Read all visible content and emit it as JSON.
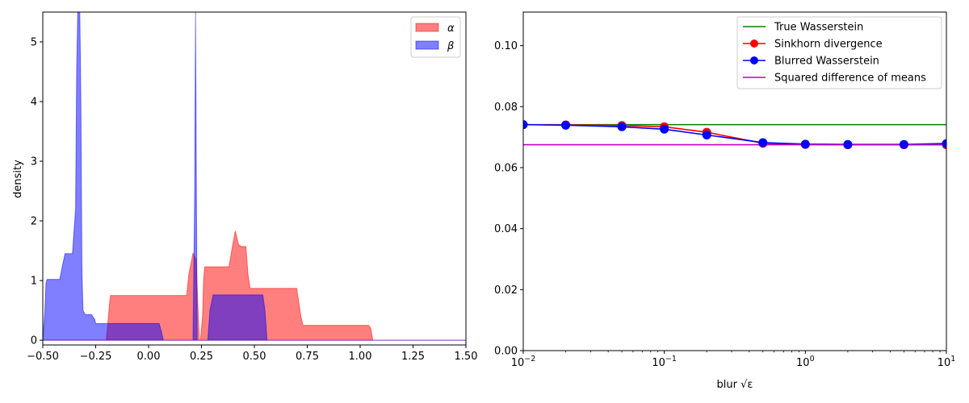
{
  "chart_data": [
    {
      "type": "area",
      "xlabel": "",
      "ylabel": "density",
      "xlim": [
        -0.5,
        1.5
      ],
      "ylim": [
        -0.08,
        5.5
      ],
      "xticks": [
        -0.5,
        -0.25,
        0.0,
        0.25,
        0.5,
        0.75,
        1.0,
        1.25,
        1.5
      ],
      "xtick_labels": [
        "−0.50",
        "−0.25",
        "0.00",
        "0.25",
        "0.50",
        "0.75",
        "1.00",
        "1.25",
        "1.50"
      ],
      "yticks": [
        0,
        1,
        2,
        3,
        4,
        5
      ],
      "ytick_labels": [
        "0",
        "1",
        "2",
        "3",
        "4",
        "5"
      ],
      "grid": false,
      "legend": "top-right",
      "series": [
        {
          "name": "α",
          "color": "#ff0000",
          "opacity": 0.5,
          "x": [
            -0.5,
            -0.2,
            -0.185,
            -0.18,
            0.18,
            0.19,
            0.21,
            0.225,
            0.235,
            0.24,
            0.245,
            0.255,
            0.26,
            0.265,
            0.28,
            0.38,
            0.395,
            0.41,
            0.425,
            0.44,
            0.46,
            0.47,
            0.48,
            0.5,
            0.7,
            0.72,
            0.73,
            1.04,
            1.05,
            1.06,
            1.5
          ],
          "y": [
            0,
            0,
            0.6,
            0.75,
            0.75,
            1.1,
            1.46,
            1.35,
            0.4,
            0,
            0,
            0.4,
            1.0,
            1.23,
            1.23,
            1.23,
            1.55,
            1.83,
            1.6,
            1.57,
            1.57,
            1.1,
            0.87,
            0.87,
            0.87,
            0.4,
            0.25,
            0.25,
            0.2,
            0,
            0
          ]
        },
        {
          "name": "β",
          "color": "#0000ff",
          "opacity": 0.5,
          "x": [
            -0.5,
            -0.49,
            -0.485,
            -0.48,
            -0.42,
            -0.41,
            -0.395,
            -0.36,
            -0.345,
            -0.34,
            -0.335,
            -0.33,
            -0.325,
            -0.32,
            -0.315,
            -0.31,
            -0.3,
            -0.27,
            -0.255,
            -0.25,
            0.05,
            0.06,
            0.07,
            0.21,
            0.218,
            0.222,
            0.226,
            0.23,
            0.24,
            0.28,
            0.29,
            0.305,
            0.54,
            0.55,
            0.56,
            1.5
          ],
          "y": [
            0,
            0.5,
            0.95,
            1.02,
            1.02,
            1.2,
            1.45,
            1.45,
            2.2,
            4.5,
            5.5,
            5.5,
            5.5,
            4.0,
            1.2,
            0.5,
            0.43,
            0.43,
            0.35,
            0.28,
            0.28,
            0.15,
            0,
            0,
            2.5,
            5.5,
            2.5,
            0,
            0,
            0,
            0.5,
            0.76,
            0.76,
            0.5,
            0,
            0
          ]
        }
      ]
    },
    {
      "type": "line",
      "xscale": "log",
      "xlabel": "blur √ε",
      "ylabel": "",
      "xlim": [
        0.01,
        10
      ],
      "ylim": [
        0,
        0.111
      ],
      "xticks": [
        0.01,
        0.1,
        1,
        10
      ],
      "xtick_labels": [
        {
          "base": "10",
          "exp": "−2"
        },
        {
          "base": "10",
          "exp": "−1"
        },
        {
          "base": "10",
          "exp": "0"
        },
        {
          "base": "10",
          "exp": "1"
        }
      ],
      "yticks": [
        0,
        0.02,
        0.04,
        0.06,
        0.08,
        0.1
      ],
      "ytick_labels": [
        "0.00",
        "0.02",
        "0.04",
        "0.06",
        "0.08",
        "0.10"
      ],
      "grid": false,
      "legend": "top-right",
      "series": [
        {
          "name": "True Wasserstein",
          "color": "#008000",
          "marker": false,
          "x": [
            0.01,
            10
          ],
          "y": [
            0.0741,
            0.0741
          ]
        },
        {
          "name": "Sinkhorn divergence",
          "color": "#ff0000",
          "marker": true,
          "x": [
            0.01,
            0.02,
            0.05,
            0.1,
            0.2,
            0.5,
            1,
            2,
            5,
            10
          ],
          "y": [
            0.0741,
            0.074,
            0.0738,
            0.0734,
            0.0716,
            0.068,
            0.0676,
            0.0675,
            0.0675,
            0.0675
          ]
        },
        {
          "name": "Blurred Wasserstein",
          "color": "#0000ff",
          "marker": true,
          "x": [
            0.01,
            0.02,
            0.05,
            0.1,
            0.2,
            0.5,
            1,
            2,
            5,
            10
          ],
          "y": [
            0.0741,
            0.0739,
            0.0734,
            0.0726,
            0.0707,
            0.0682,
            0.0677,
            0.0676,
            0.0676,
            0.0679
          ]
        },
        {
          "name": "Squared difference of means",
          "color": "#bf00bf",
          "marker": false,
          "x": [
            0.01,
            10
          ],
          "y": [
            0.0675,
            0.0675
          ]
        }
      ]
    }
  ]
}
